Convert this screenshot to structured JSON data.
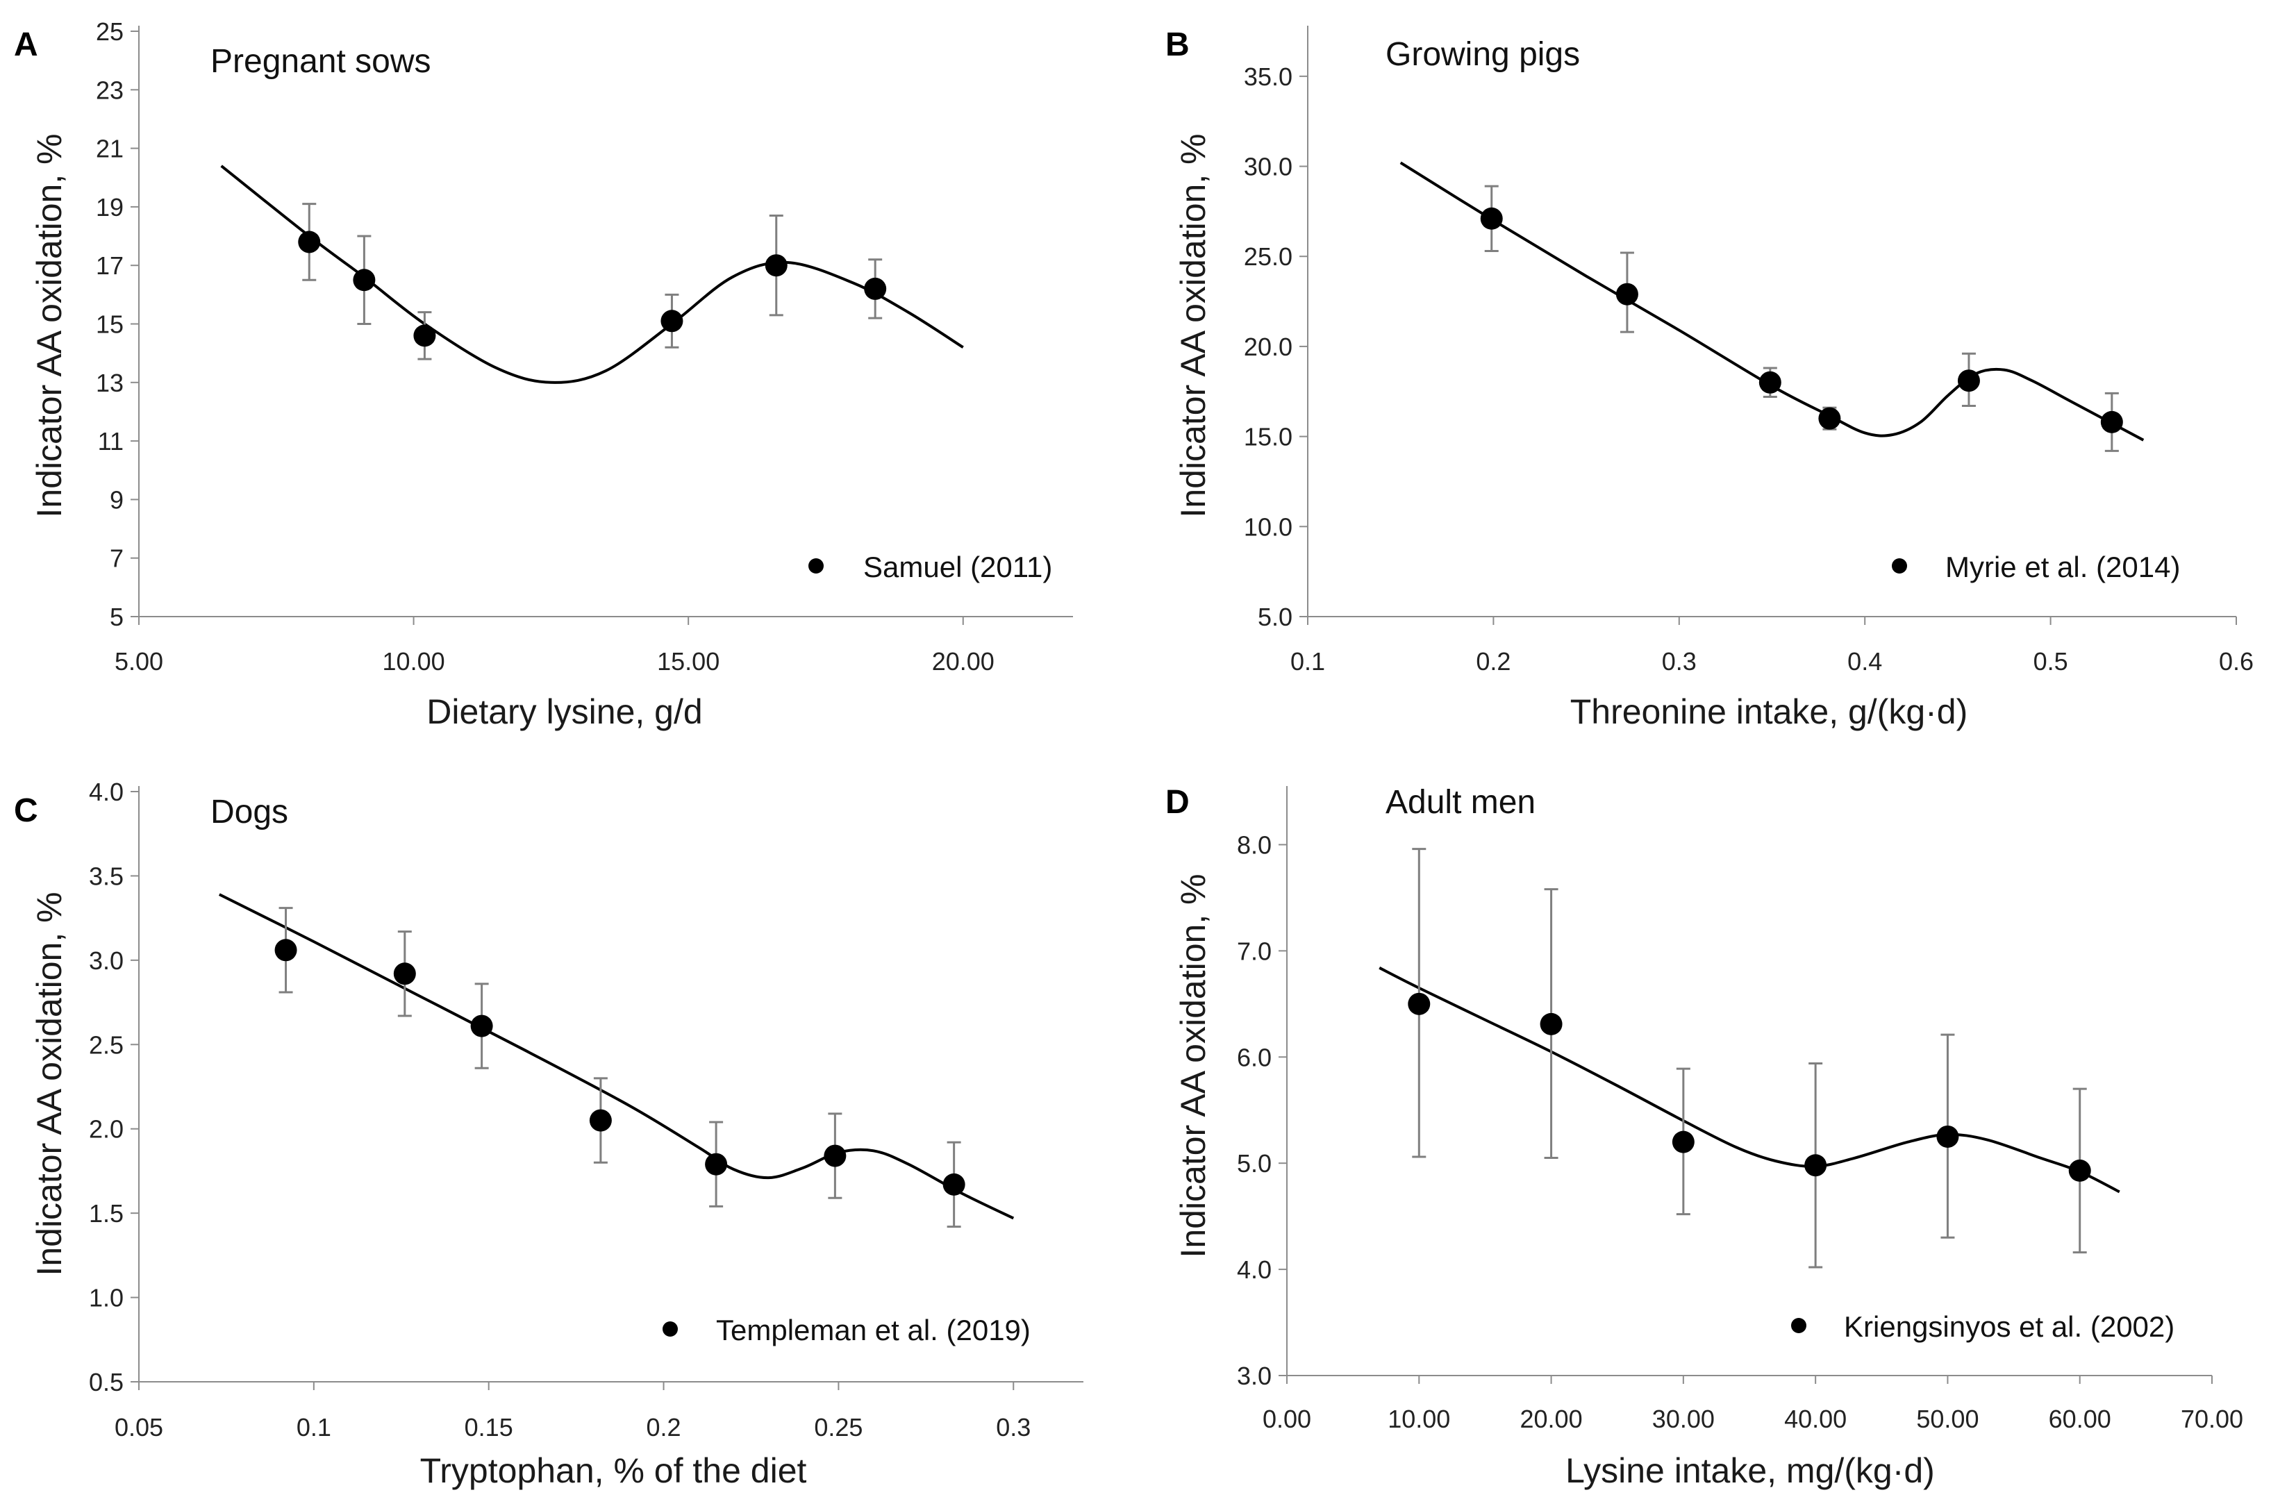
{
  "figure": {
    "colors": {
      "line": "#000000",
      "point": "#000000",
      "errorbar": "#7f7f7f",
      "axis": "#8c8c8c"
    }
  },
  "chart_data": [
    {
      "panel": "A",
      "type": "scatter",
      "title": "Pregnant sows",
      "xlabel": "Dietary lysine, g/d",
      "ylabel": "Indicator AA oxidation, %",
      "xlim": [
        5,
        22
      ],
      "ylim": [
        5,
        25
      ],
      "xticks": [
        5,
        10,
        15,
        20
      ],
      "xtick_labels": [
        "5.00",
        "10.00",
        "15.00",
        "20.00"
      ],
      "yticks": [
        5,
        7,
        9,
        11,
        13,
        15,
        17,
        19,
        21,
        23,
        25
      ],
      "ytick_labels": [
        "5",
        "7",
        "9",
        "11",
        "13",
        "15",
        "17",
        "19",
        "21",
        "23",
        "25"
      ],
      "legend": "Samuel (2011)",
      "legend_position": "bottom-right",
      "points": [
        {
          "x": 8.1,
          "y": 17.8,
          "err_low": 1.3,
          "err_high": 1.3
        },
        {
          "x": 9.1,
          "y": 16.5,
          "err_low": 1.5,
          "err_high": 1.5
        },
        {
          "x": 10.2,
          "y": 14.6,
          "err_low": 0.8,
          "err_high": 0.8
        },
        {
          "x": 14.7,
          "y": 15.1,
          "err_low": 0.9,
          "err_high": 0.9
        },
        {
          "x": 16.6,
          "y": 17.0,
          "err_low": 1.7,
          "err_high": 1.7
        },
        {
          "x": 18.4,
          "y": 16.2,
          "err_low": 1.0,
          "err_high": 1.0
        }
      ],
      "curve": [
        [
          6.5,
          20.4
        ],
        [
          8.1,
          18.0
        ],
        [
          9.1,
          16.6
        ],
        [
          10.2,
          15.0
        ],
        [
          11.5,
          13.5
        ],
        [
          12.5,
          13.0
        ],
        [
          13.5,
          13.4
        ],
        [
          14.7,
          15.0
        ],
        [
          15.8,
          16.6
        ],
        [
          16.8,
          17.1
        ],
        [
          18.0,
          16.4
        ],
        [
          19.0,
          15.4
        ],
        [
          20.0,
          14.2
        ]
      ]
    },
    {
      "panel": "B",
      "type": "scatter",
      "title": "Growing pigs",
      "xlabel": "Threonine intake, g/(kg·d)",
      "ylabel": "Indicator AA oxidation, %",
      "xlim": [
        0.1,
        0.6
      ],
      "ylim": [
        5,
        37.5
      ],
      "xticks": [
        0.1,
        0.2,
        0.3,
        0.4,
        0.5,
        0.6
      ],
      "xtick_labels": [
        "0.1",
        "0.2",
        "0.3",
        "0.4",
        "0.5",
        "0.6"
      ],
      "yticks": [
        5,
        10,
        15,
        20,
        25,
        30,
        35
      ],
      "ytick_labels": [
        "5.0",
        "10.0",
        "15.0",
        "20.0",
        "25.0",
        "30.0",
        "35.0"
      ],
      "legend": "Myrie et al. (2014)",
      "legend_position": "bottom-right",
      "points": [
        {
          "x": 0.199,
          "y": 27.1,
          "err_low": 1.8,
          "err_high": 1.8
        },
        {
          "x": 0.272,
          "y": 22.9,
          "err_low": 2.1,
          "err_high": 2.3
        },
        {
          "x": 0.349,
          "y": 18.0,
          "err_low": 0.8,
          "err_high": 0.8
        },
        {
          "x": 0.381,
          "y": 16.0,
          "err_low": 0.6,
          "err_high": 0.6
        },
        {
          "x": 0.456,
          "y": 18.1,
          "err_low": 1.4,
          "err_high": 1.5
        },
        {
          "x": 0.533,
          "y": 15.8,
          "err_low": 1.6,
          "err_high": 1.6
        }
      ],
      "curve": [
        [
          0.15,
          30.2
        ],
        [
          0.2,
          27.0
        ],
        [
          0.25,
          23.9
        ],
        [
          0.3,
          20.9
        ],
        [
          0.35,
          17.8
        ],
        [
          0.38,
          16.2
        ],
        [
          0.4,
          15.2
        ],
        [
          0.415,
          15.1
        ],
        [
          0.43,
          15.8
        ],
        [
          0.445,
          17.3
        ],
        [
          0.46,
          18.5
        ],
        [
          0.475,
          18.7
        ],
        [
          0.49,
          18.1
        ],
        [
          0.51,
          17.0
        ],
        [
          0.53,
          15.9
        ],
        [
          0.55,
          14.8
        ]
      ]
    },
    {
      "panel": "C",
      "type": "scatter",
      "title": "Dogs",
      "xlabel": "Tryptophan, % of the diet",
      "ylabel": "Indicator AA oxidation, %",
      "xlim": [
        0.05,
        0.32
      ],
      "ylim": [
        0.5,
        4.0
      ],
      "xticks": [
        0.05,
        0.1,
        0.15,
        0.2,
        0.25,
        0.3
      ],
      "xtick_labels": [
        "0.05",
        "0.1",
        "0.15",
        "0.2",
        "0.25",
        "0.3"
      ],
      "yticks": [
        0.5,
        1.0,
        1.5,
        2.0,
        2.5,
        3.0,
        3.5,
        4.0
      ],
      "ytick_labels": [
        "0.5",
        "1.0",
        "1.5",
        "2.0",
        "2.5",
        "3.0",
        "3.5",
        "4.0"
      ],
      "legend": "Templeman et al. (2019)",
      "legend_position": "bottom-right",
      "points": [
        {
          "x": 0.092,
          "y": 3.06,
          "err_low": 0.25,
          "err_high": 0.25
        },
        {
          "x": 0.126,
          "y": 2.92,
          "err_low": 0.25,
          "err_high": 0.25
        },
        {
          "x": 0.148,
          "y": 2.61,
          "err_low": 0.25,
          "err_high": 0.25
        },
        {
          "x": 0.182,
          "y": 2.05,
          "err_low": 0.25,
          "err_high": 0.25
        },
        {
          "x": 0.215,
          "y": 1.79,
          "err_low": 0.25,
          "err_high": 0.25
        },
        {
          "x": 0.249,
          "y": 1.84,
          "err_low": 0.25,
          "err_high": 0.25
        },
        {
          "x": 0.283,
          "y": 1.67,
          "err_low": 0.25,
          "err_high": 0.25
        }
      ],
      "curve": [
        [
          0.073,
          3.39
        ],
        [
          0.1,
          3.11
        ],
        [
          0.13,
          2.79
        ],
        [
          0.16,
          2.47
        ],
        [
          0.19,
          2.14
        ],
        [
          0.21,
          1.89
        ],
        [
          0.22,
          1.76
        ],
        [
          0.23,
          1.71
        ],
        [
          0.24,
          1.77
        ],
        [
          0.25,
          1.86
        ],
        [
          0.26,
          1.87
        ],
        [
          0.27,
          1.79
        ],
        [
          0.285,
          1.62
        ],
        [
          0.3,
          1.47
        ]
      ]
    },
    {
      "panel": "D",
      "type": "scatter",
      "title": "Adult men",
      "xlabel": "Lysine intake, mg/(kg·d)",
      "ylabel": "Indicator AA oxidation, %",
      "xlim": [
        0,
        70
      ],
      "ylim": [
        3.0,
        8.5
      ],
      "xticks": [
        0,
        10,
        20,
        30,
        40,
        50,
        60,
        70
      ],
      "xtick_labels": [
        "0.00",
        "10.00",
        "20.00",
        "30.00",
        "40.00",
        "50.00",
        "60.00",
        "70.00"
      ],
      "yticks": [
        3,
        4,
        5,
        6,
        7,
        8
      ],
      "ytick_labels": [
        "3.0",
        "4.0",
        "5.0",
        "6.0",
        "7.0",
        "8.0"
      ],
      "legend": "Kriengsinyos et al. (2002)",
      "legend_position": "bottom-right",
      "points": [
        {
          "x": 10,
          "y": 6.5,
          "err_low": 1.44,
          "err_high": 1.46
        },
        {
          "x": 20,
          "y": 6.31,
          "err_low": 1.26,
          "err_high": 1.27
        },
        {
          "x": 30,
          "y": 5.2,
          "err_low": 0.68,
          "err_high": 0.69
        },
        {
          "x": 40,
          "y": 4.98,
          "err_low": 0.96,
          "err_high": 0.96
        },
        {
          "x": 50,
          "y": 5.25,
          "err_low": 0.95,
          "err_high": 0.96
        },
        {
          "x": 60,
          "y": 4.93,
          "err_low": 0.77,
          "err_high": 0.77
        }
      ],
      "curve": [
        [
          7,
          6.84
        ],
        [
          10,
          6.65
        ],
        [
          15,
          6.35
        ],
        [
          20,
          6.05
        ],
        [
          25,
          5.73
        ],
        [
          30,
          5.4
        ],
        [
          34,
          5.15
        ],
        [
          37,
          5.02
        ],
        [
          40,
          4.97
        ],
        [
          43,
          5.05
        ],
        [
          47,
          5.2
        ],
        [
          50,
          5.27
        ],
        [
          53,
          5.22
        ],
        [
          57,
          5.05
        ],
        [
          60,
          4.92
        ],
        [
          63,
          4.73
        ]
      ]
    }
  ]
}
